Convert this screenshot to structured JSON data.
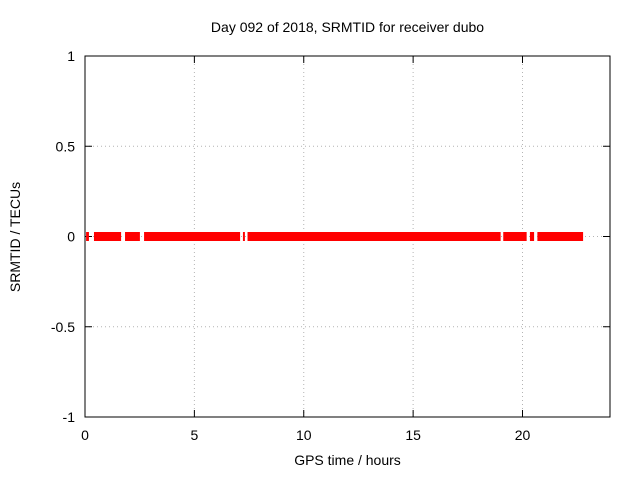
{
  "chart_data": {
    "type": "scatter",
    "title": "Day 092 of 2018, SRMTID for receiver dubo",
    "xlabel": "GPS time / hours",
    "ylabel": "SRMTID / TECUs",
    "xlim": [
      0,
      24
    ],
    "ylim": [
      -1,
      1
    ],
    "xticks": [
      0,
      5,
      10,
      15,
      20
    ],
    "xtick_labels": [
      "0",
      "5",
      "10",
      "15",
      "20"
    ],
    "yticks": [
      -1,
      -0.5,
      0,
      0.5,
      1
    ],
    "ytick_labels": [
      "-1",
      "-0.5",
      "0",
      "0.5",
      "1"
    ],
    "grid": true,
    "legend_position": "none",
    "series": [
      {
        "name": "SRMTID",
        "y_value": 0,
        "color": "#ff0000",
        "marker": "filled-square",
        "x_segments": [
          [
            0.05,
            0.18
          ],
          [
            0.41,
            1.65
          ],
          [
            1.83,
            2.51
          ],
          [
            2.7,
            7.09
          ],
          [
            7.22,
            7.31
          ],
          [
            7.43,
            19.0
          ],
          [
            19.12,
            20.19
          ],
          [
            20.34,
            20.53
          ],
          [
            20.68,
            22.77
          ]
        ]
      }
    ],
    "colors": {
      "data": "#ff0000",
      "grid": "#b4b4b4",
      "border": "#000000",
      "background": "#ffffff",
      "text": "#000000"
    }
  }
}
